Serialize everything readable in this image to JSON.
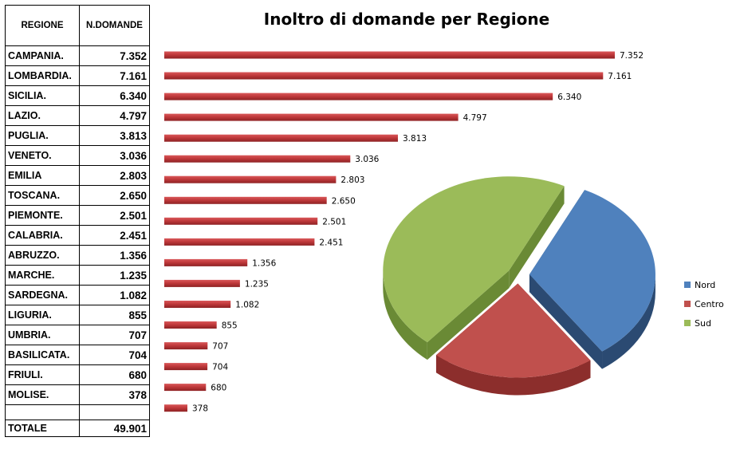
{
  "table": {
    "header": {
      "region": "REGIONE",
      "count": "N.DOMANDE"
    },
    "rows": [
      {
        "region": "CAMPANIA.",
        "count": "7.352"
      },
      {
        "region": "LOMBARDIA.",
        "count": "7.161"
      },
      {
        "region": "SICILIA.",
        "count": "6.340"
      },
      {
        "region": "LAZIO.",
        "count": "4.797"
      },
      {
        "region": "PUGLIA.",
        "count": "3.813"
      },
      {
        "region": "VENETO.",
        "count": "3.036"
      },
      {
        "region": "EMILIA",
        "count": "2.803"
      },
      {
        "region": "TOSCANA.",
        "count": "2.650"
      },
      {
        "region": "PIEMONTE.",
        "count": "2.501"
      },
      {
        "region": "CALABRIA.",
        "count": "2.451"
      },
      {
        "region": "ABRUZZO.",
        "count": "1.356"
      },
      {
        "region": "MARCHE.",
        "count": "1.235"
      },
      {
        "region": "SARDEGNA.",
        "count": "1.082"
      },
      {
        "region": "LIGURIA.",
        "count": "855"
      },
      {
        "region": "UMBRIA.",
        "count": "707"
      },
      {
        "region": "BASILICATA.",
        "count": "704"
      },
      {
        "region": "FRIULI.",
        "count": "680"
      },
      {
        "region": "MOLISE.",
        "count": "378"
      }
    ],
    "total": {
      "label": "TOTALE",
      "value": "49.901"
    }
  },
  "chart_data": [
    {
      "type": "bar",
      "orientation": "horizontal",
      "title": "Inoltro di domande per Regione",
      "categories": [
        "CAMPANIA.",
        "LOMBARDIA.",
        "SICILIA.",
        "LAZIO.",
        "PUGLIA.",
        "VENETO.",
        "EMILIA",
        "TOSCANA.",
        "PIEMONTE.",
        "CALABRIA.",
        "ABRUZZO.",
        "MARCHE.",
        "SARDEGNA.",
        "LIGURIA.",
        "UMBRIA.",
        "BASILICATA.",
        "FRIULI.",
        "MOLISE."
      ],
      "values": [
        7352,
        7161,
        6340,
        4797,
        3813,
        3036,
        2803,
        2650,
        2501,
        2451,
        1356,
        1235,
        1082,
        855,
        707,
        704,
        680,
        378
      ],
      "value_labels": [
        "7.352",
        "7.161",
        "6.340",
        "4.797",
        "3.813",
        "3.036",
        "2.803",
        "2.650",
        "2.501",
        "2.451",
        "1.356",
        "1.235",
        "1.082",
        "855",
        "707",
        "704",
        "680",
        "378"
      ],
      "color": "#C0393B",
      "xlim": [
        0,
        7352
      ],
      "grid": false,
      "axes_visible": false
    },
    {
      "type": "pie",
      "style": "3d-exploded",
      "labels": [
        "Nord",
        "Centro",
        "Sud"
      ],
      "values": [
        0.33,
        0.21,
        0.46
      ],
      "colors": [
        "#4F81BD",
        "#C0504D",
        "#9BBB59"
      ],
      "side_colors": [
        "#2B4A72",
        "#8C2E2C",
        "#6A8A35"
      ],
      "legend": "right"
    }
  ]
}
